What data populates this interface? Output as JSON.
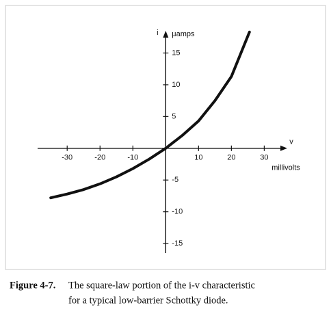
{
  "chart_data": {
    "type": "line",
    "x_label": "v",
    "x_unit": "millivolts",
    "y_label": "i",
    "y_unit": "μamps",
    "x": [
      -35,
      -30,
      -25,
      -20,
      -15,
      -10,
      -5,
      0,
      5,
      10,
      15,
      20,
      25.5
    ],
    "series": [
      {
        "color": "#111111",
        "values": [
          -7.8,
          -7.2,
          -6.5,
          -5.6,
          -4.5,
          -3.2,
          -1.7,
          0,
          2,
          4.3,
          7.5,
          11.3,
          18.3
        ]
      }
    ],
    "xlim": [
      -39,
      37
    ],
    "ylim": [
      -16.5,
      18.5
    ],
    "xticks": [
      -30,
      -20,
      -10,
      10,
      20,
      30
    ],
    "yticks": [
      -15,
      -10,
      -5,
      5,
      10,
      15
    ]
  },
  "caption": {
    "label": "Figure 4-7.",
    "lines": [
      "The square-law portion of the i-v characteristic",
      "for a typical low-barrier Schottky diode."
    ]
  }
}
